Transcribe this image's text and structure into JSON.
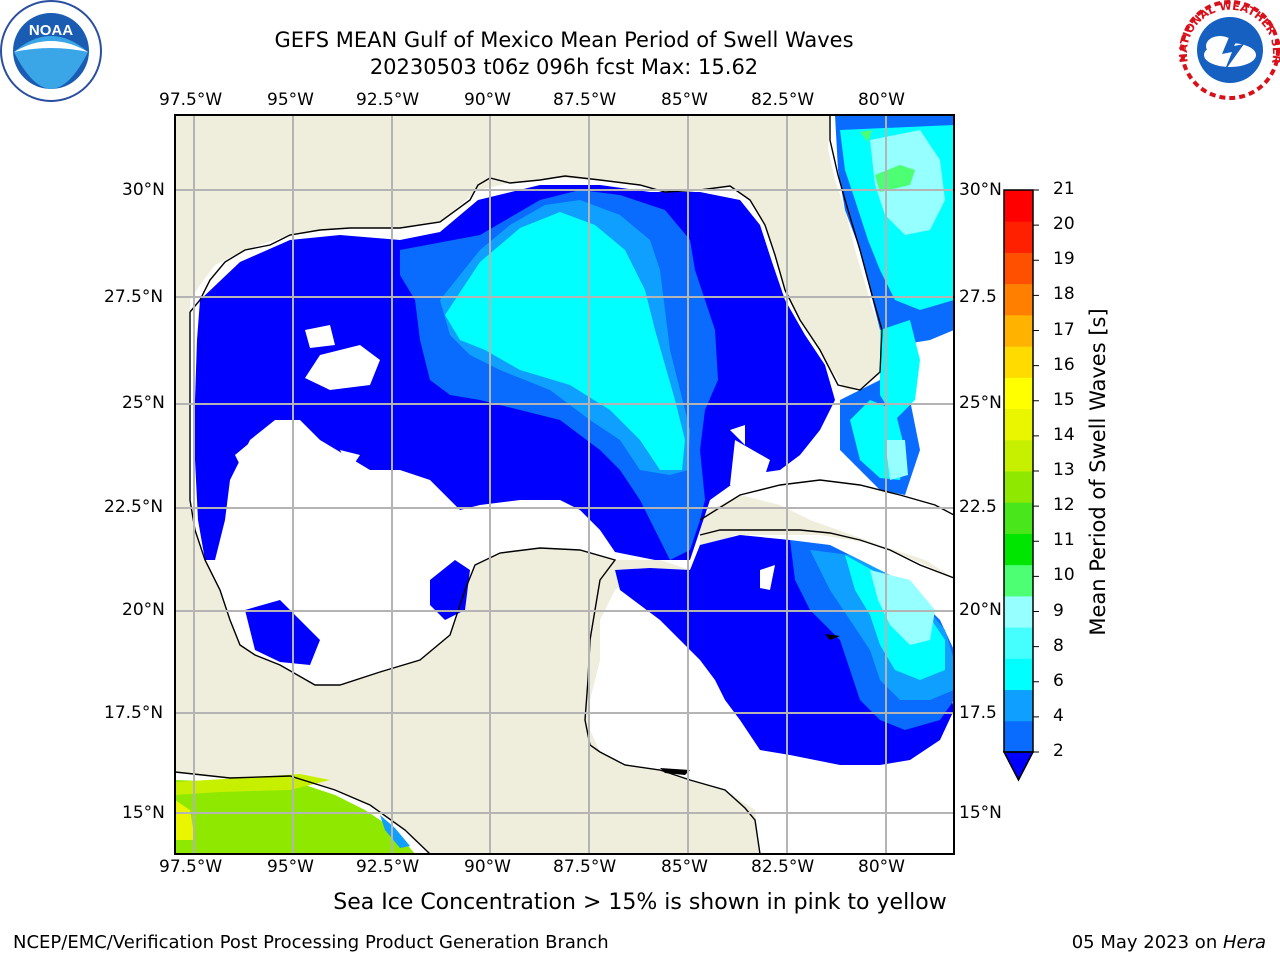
{
  "title_line1": "GEFS MEAN Gulf of Mexico Mean Period of Swell Waves",
  "title_line2": "20230503 t06z 096h fcst   Max: 15.62",
  "map": {
    "lon_labels": [
      "97.5°W",
      "95°W",
      "92.5°W",
      "90°W",
      "87.5°W",
      "85°W",
      "82.5°W",
      "80°W"
    ],
    "lat_labels_left": [
      "30°N",
      "27.5°N",
      "25°N",
      "22.5°N",
      "20°N",
      "17.5°N",
      "15°N"
    ],
    "lat_labels_right": [
      "30°N",
      "27.5",
      "25°N",
      "22.5",
      "20°N",
      "17.5",
      "15°N"
    ],
    "extent": {
      "lon_min": -98.0,
      "lon_max": -78.3,
      "lat_min": 14.0,
      "lat_max": 31.8
    }
  },
  "colorbar": {
    "title": "Mean Period of Swell Waves [s]",
    "ticks": [
      "2",
      "4",
      "6",
      "8",
      "9",
      "10",
      "11",
      "12",
      "13",
      "14",
      "15",
      "16",
      "17",
      "18",
      "19",
      "20",
      "21"
    ],
    "colors": [
      "#0a6cff",
      "#0fa0ff",
      "#00ffff",
      "#45ffff",
      "#96ffff",
      "#4cff73",
      "#00e600",
      "#48e61a",
      "#8ee800",
      "#c6f000",
      "#eaf600",
      "#ffff00",
      "#ffdb00",
      "#ffb300",
      "#ff8000",
      "#ff5000",
      "#ff2000",
      "#ff0000"
    ],
    "extend_color": "#0000ff"
  },
  "caption": "Sea Ice Concentration > 15% is shown in pink to yellow",
  "footer_left": "NCEP/EMC/Verification Post Processing Product Generation Branch",
  "footer_date": "05 May 2023 on ",
  "footer_host": "Hera",
  "logos": {
    "noaa_text": "NOAA",
    "nws_text": "NATIONAL WEATHER SERVICE"
  },
  "colors": {
    "land": "#efeddc",
    "low_period": "#0000ff",
    "grid": "#b4b4b4"
  }
}
